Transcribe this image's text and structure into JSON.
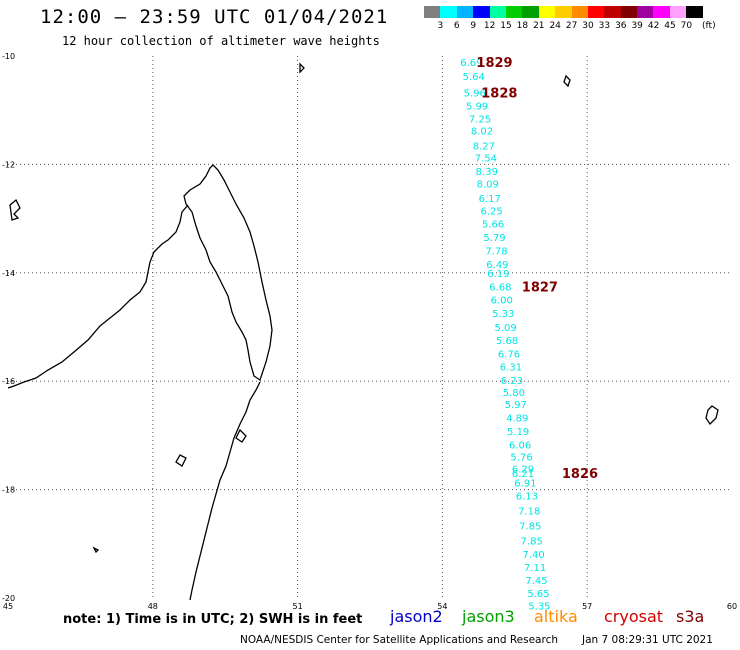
{
  "header": {
    "title": "12:00 – 23:59 UTC 01/04/2021",
    "subtitle": "12 hour collection of altimeter wave heights"
  },
  "legend": {
    "colors": [
      "#808080",
      "#00ffff",
      "#00b4ff",
      "#0000ff",
      "#00ffa0",
      "#00ce00",
      "#00a000",
      "#ffff00",
      "#ffcc00",
      "#ff8c00",
      "#ff0000",
      "#c00000",
      "#800000",
      "#a000a0",
      "#ff00ff",
      "#ffa0ff",
      "#000000"
    ],
    "labels": [
      "3",
      "6",
      "9",
      "12",
      "15",
      "18",
      "21",
      "24",
      "27",
      "30",
      "33",
      "36",
      "39",
      "42",
      "45",
      "70",
      "(ft)"
    ]
  },
  "axes": {
    "lat_labels": [
      "-10",
      "-12",
      "-14",
      "-16",
      "-18",
      "-20"
    ],
    "lon_labels": [
      "45",
      "48",
      "51",
      "54",
      "57",
      "60"
    ]
  },
  "track": {
    "color": "#00e4e4",
    "points": [
      {
        "v": "6.69",
        "lon": 54.6,
        "lat": -10.11
      },
      {
        "v": "5.64",
        "lon": 54.65,
        "lat": -10.37
      },
      {
        "v": "5.96",
        "lon": 54.67,
        "lat": -10.67
      },
      {
        "v": "5.99",
        "lon": 54.72,
        "lat": -10.91
      },
      {
        "v": "7.25",
        "lon": 54.78,
        "lat": -11.15
      },
      {
        "v": "8.02",
        "lon": 54.82,
        "lat": -11.37
      },
      {
        "v": "8.27",
        "lon": 54.86,
        "lat": -11.65
      },
      {
        "v": "7.54",
        "lon": 54.9,
        "lat": -11.87
      },
      {
        "v": "8.39",
        "lon": 54.92,
        "lat": -12.12
      },
      {
        "v": "8.09",
        "lon": 54.94,
        "lat": -12.35
      },
      {
        "v": "6.17",
        "lon": 54.98,
        "lat": -12.62
      },
      {
        "v": "6.25",
        "lon": 55.02,
        "lat": -12.85
      },
      {
        "v": "5.66",
        "lon": 55.05,
        "lat": -13.09
      },
      {
        "v": "5.79",
        "lon": 55.08,
        "lat": -13.34
      },
      {
        "v": "7.78",
        "lon": 55.12,
        "lat": -13.59
      },
      {
        "v": "6.49",
        "lon": 55.14,
        "lat": -13.84
      },
      {
        "v": "6.19",
        "lon": 55.16,
        "lat": -14.0
      },
      {
        "v": "6.68",
        "lon": 55.2,
        "lat": -14.25
      },
      {
        "v": "6.00",
        "lon": 55.23,
        "lat": -14.49
      },
      {
        "v": "5.33",
        "lon": 55.26,
        "lat": -14.74
      },
      {
        "v": "5.09",
        "lon": 55.31,
        "lat": -15.0
      },
      {
        "v": "5.68",
        "lon": 55.34,
        "lat": -15.24
      },
      {
        "v": "6.76",
        "lon": 55.38,
        "lat": -15.49
      },
      {
        "v": "6.31",
        "lon": 55.42,
        "lat": -15.73
      },
      {
        "v": "6.23",
        "lon": 55.44,
        "lat": -15.98
      },
      {
        "v": "5.80",
        "lon": 55.48,
        "lat": -16.2
      },
      {
        "v": "5.97",
        "lon": 55.52,
        "lat": -16.42
      },
      {
        "v": "4.89",
        "lon": 55.55,
        "lat": -16.67
      },
      {
        "v": "5.19",
        "lon": 55.57,
        "lat": -16.92
      },
      {
        "v": "6.06",
        "lon": 55.61,
        "lat": -17.17
      },
      {
        "v": "5.76",
        "lon": 55.64,
        "lat": -17.39
      },
      {
        "v": "6.29",
        "lon": 55.67,
        "lat": -17.61
      },
      {
        "v": "6.21",
        "lon": 55.67,
        "lat": -17.69
      },
      {
        "v": "6.91",
        "lon": 55.72,
        "lat": -17.87
      },
      {
        "v": "6.13",
        "lon": 55.75,
        "lat": -18.11
      },
      {
        "v": "7.18",
        "lon": 55.8,
        "lat": -18.39
      },
      {
        "v": "7.85",
        "lon": 55.82,
        "lat": -18.66
      },
      {
        "v": "7.85",
        "lon": 55.85,
        "lat": -18.94
      },
      {
        "v": "7.40",
        "lon": 55.89,
        "lat": -19.19
      },
      {
        "v": "7.11",
        "lon": 55.92,
        "lat": -19.43
      },
      {
        "v": "7.45",
        "lon": 55.95,
        "lat": -19.67
      },
      {
        "v": "5.65",
        "lon": 55.99,
        "lat": -19.91
      },
      {
        "v": "5.35",
        "lon": 56.01,
        "lat": -20.14
      }
    ]
  },
  "passes": [
    {
      "label": "1829",
      "lon": 55.08,
      "lat": -10.11
    },
    {
      "label": "1828",
      "lon": 55.18,
      "lat": -10.67
    },
    {
      "label": "1827",
      "lon": 56.02,
      "lat": -14.25
    },
    {
      "label": "1826",
      "lon": 56.85,
      "lat": -17.69
    }
  ],
  "footer": {
    "note": "note:  1) Time is in UTC;  2) SWH is in feet",
    "satellites": [
      {
        "name": "jason2",
        "color": "#0000c8"
      },
      {
        "name": "jason3",
        "color": "#00a000"
      },
      {
        "name": "altika",
        "color": "#ff8c00"
      },
      {
        "name": "cryosat",
        "color": "#d00000"
      },
      {
        "name": "s3a",
        "color": "#800000"
      }
    ],
    "credit": "NOAA/NESDIS Center for Satellite Applications and Research",
    "timestamp": "Jan  7 08:29:31 UTC 2021"
  }
}
